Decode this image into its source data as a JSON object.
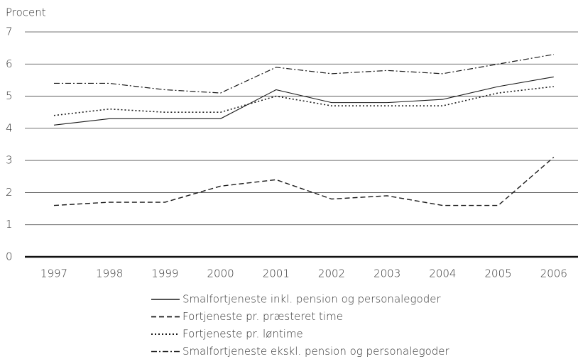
{
  "chart_data": {
    "type": "line",
    "y_label": "Procent",
    "categories": [
      "1997",
      "1998",
      "1999",
      "2000",
      "2001",
      "2002",
      "2003",
      "2004",
      "2005",
      "2006"
    ],
    "series": [
      {
        "name": "Smalfortjeneste inkl. pension og personalegoder",
        "color": "#1a1a1a",
        "dash": "solid",
        "values": [
          4.1,
          4.3,
          4.3,
          4.3,
          5.2,
          4.8,
          4.8,
          4.9,
          5.3,
          5.6
        ]
      },
      {
        "name": "Fortjeneste pr. præsteret time",
        "color": "#1a1a1a",
        "dash": "dashed",
        "values": [
          1.6,
          1.7,
          1.7,
          2.2,
          2.4,
          1.8,
          1.9,
          1.6,
          1.6,
          3.1
        ]
      },
      {
        "name": "Fortjeneste pr. løntime",
        "color": "#1a1a1a",
        "dash": "dotted",
        "values": [
          4.4,
          4.6,
          4.5,
          4.5,
          5.0,
          4.7,
          4.7,
          4.7,
          5.1,
          5.3
        ]
      },
      {
        "name": "Smalfortjeneste ekskl. pension og personalegoder",
        "color": "#1a1a1a",
        "dash": "dashdot",
        "values": [
          5.4,
          5.4,
          5.2,
          5.1,
          5.9,
          5.7,
          5.8,
          5.7,
          6.0,
          6.3
        ]
      }
    ],
    "ylim": [
      0,
      7
    ],
    "yticks": [
      0,
      1,
      2,
      3,
      4,
      5,
      6,
      7
    ],
    "grid": true,
    "legend": "bottom"
  }
}
